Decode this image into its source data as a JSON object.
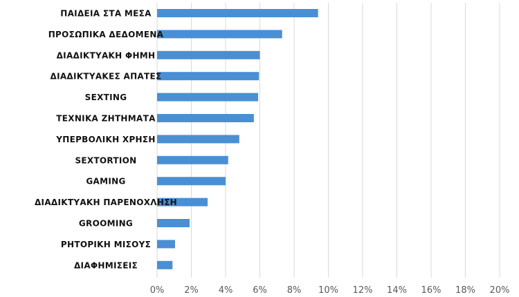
{
  "chart_data": {
    "type": "bar",
    "orientation": "horizontal",
    "categories": [
      "ΠΑΙΔΕΙΑ ΣΤΑ ΜΕΣΑ",
      "ΠΡΟΣΩΠΙΚΑ ΔΕΔΟΜΕΝΑ",
      "ΔΙΑΔΙΚΤΥΑΚΗ ΦΗΜΗ",
      "ΔΙΑΔΙΚΤΥΑΚΕΣ ΑΠΑΤΕΣ",
      "SEXTING",
      "ΤΕΧΝΙΚΑ ΖΗΤΗΜΑΤΑ",
      "ΥΠΕΡΒΟΛΙΚΗ ΧΡΗΣΗ",
      "SEXTORTION",
      "GAMING",
      "ΔΙΑΔΙΚΤΥΑΚΗ ΠΑΡΕΝΟΧΛΗΣΗ",
      "GROOMING",
      "ΡΗΤΟΡΙΚΗ ΜΙΣΟΥΣ",
      "ΔΙΑΦΗΜΙΣΕΙΣ"
    ],
    "values": [
      9.4,
      7.3,
      6.0,
      5.95,
      5.9,
      5.65,
      4.8,
      4.15,
      4.0,
      2.95,
      1.9,
      1.05,
      0.9
    ],
    "unit": "%",
    "xlim": [
      0,
      20
    ],
    "xticks": [
      "0%",
      "2%",
      "4%",
      "6%",
      "8%",
      "10%",
      "12%",
      "14%",
      "16%",
      "18%",
      "20%"
    ],
    "grid": "vertical",
    "legend": "none",
    "bar_color": "#4a8fd4",
    "grid_color": "#d9d9d9"
  }
}
